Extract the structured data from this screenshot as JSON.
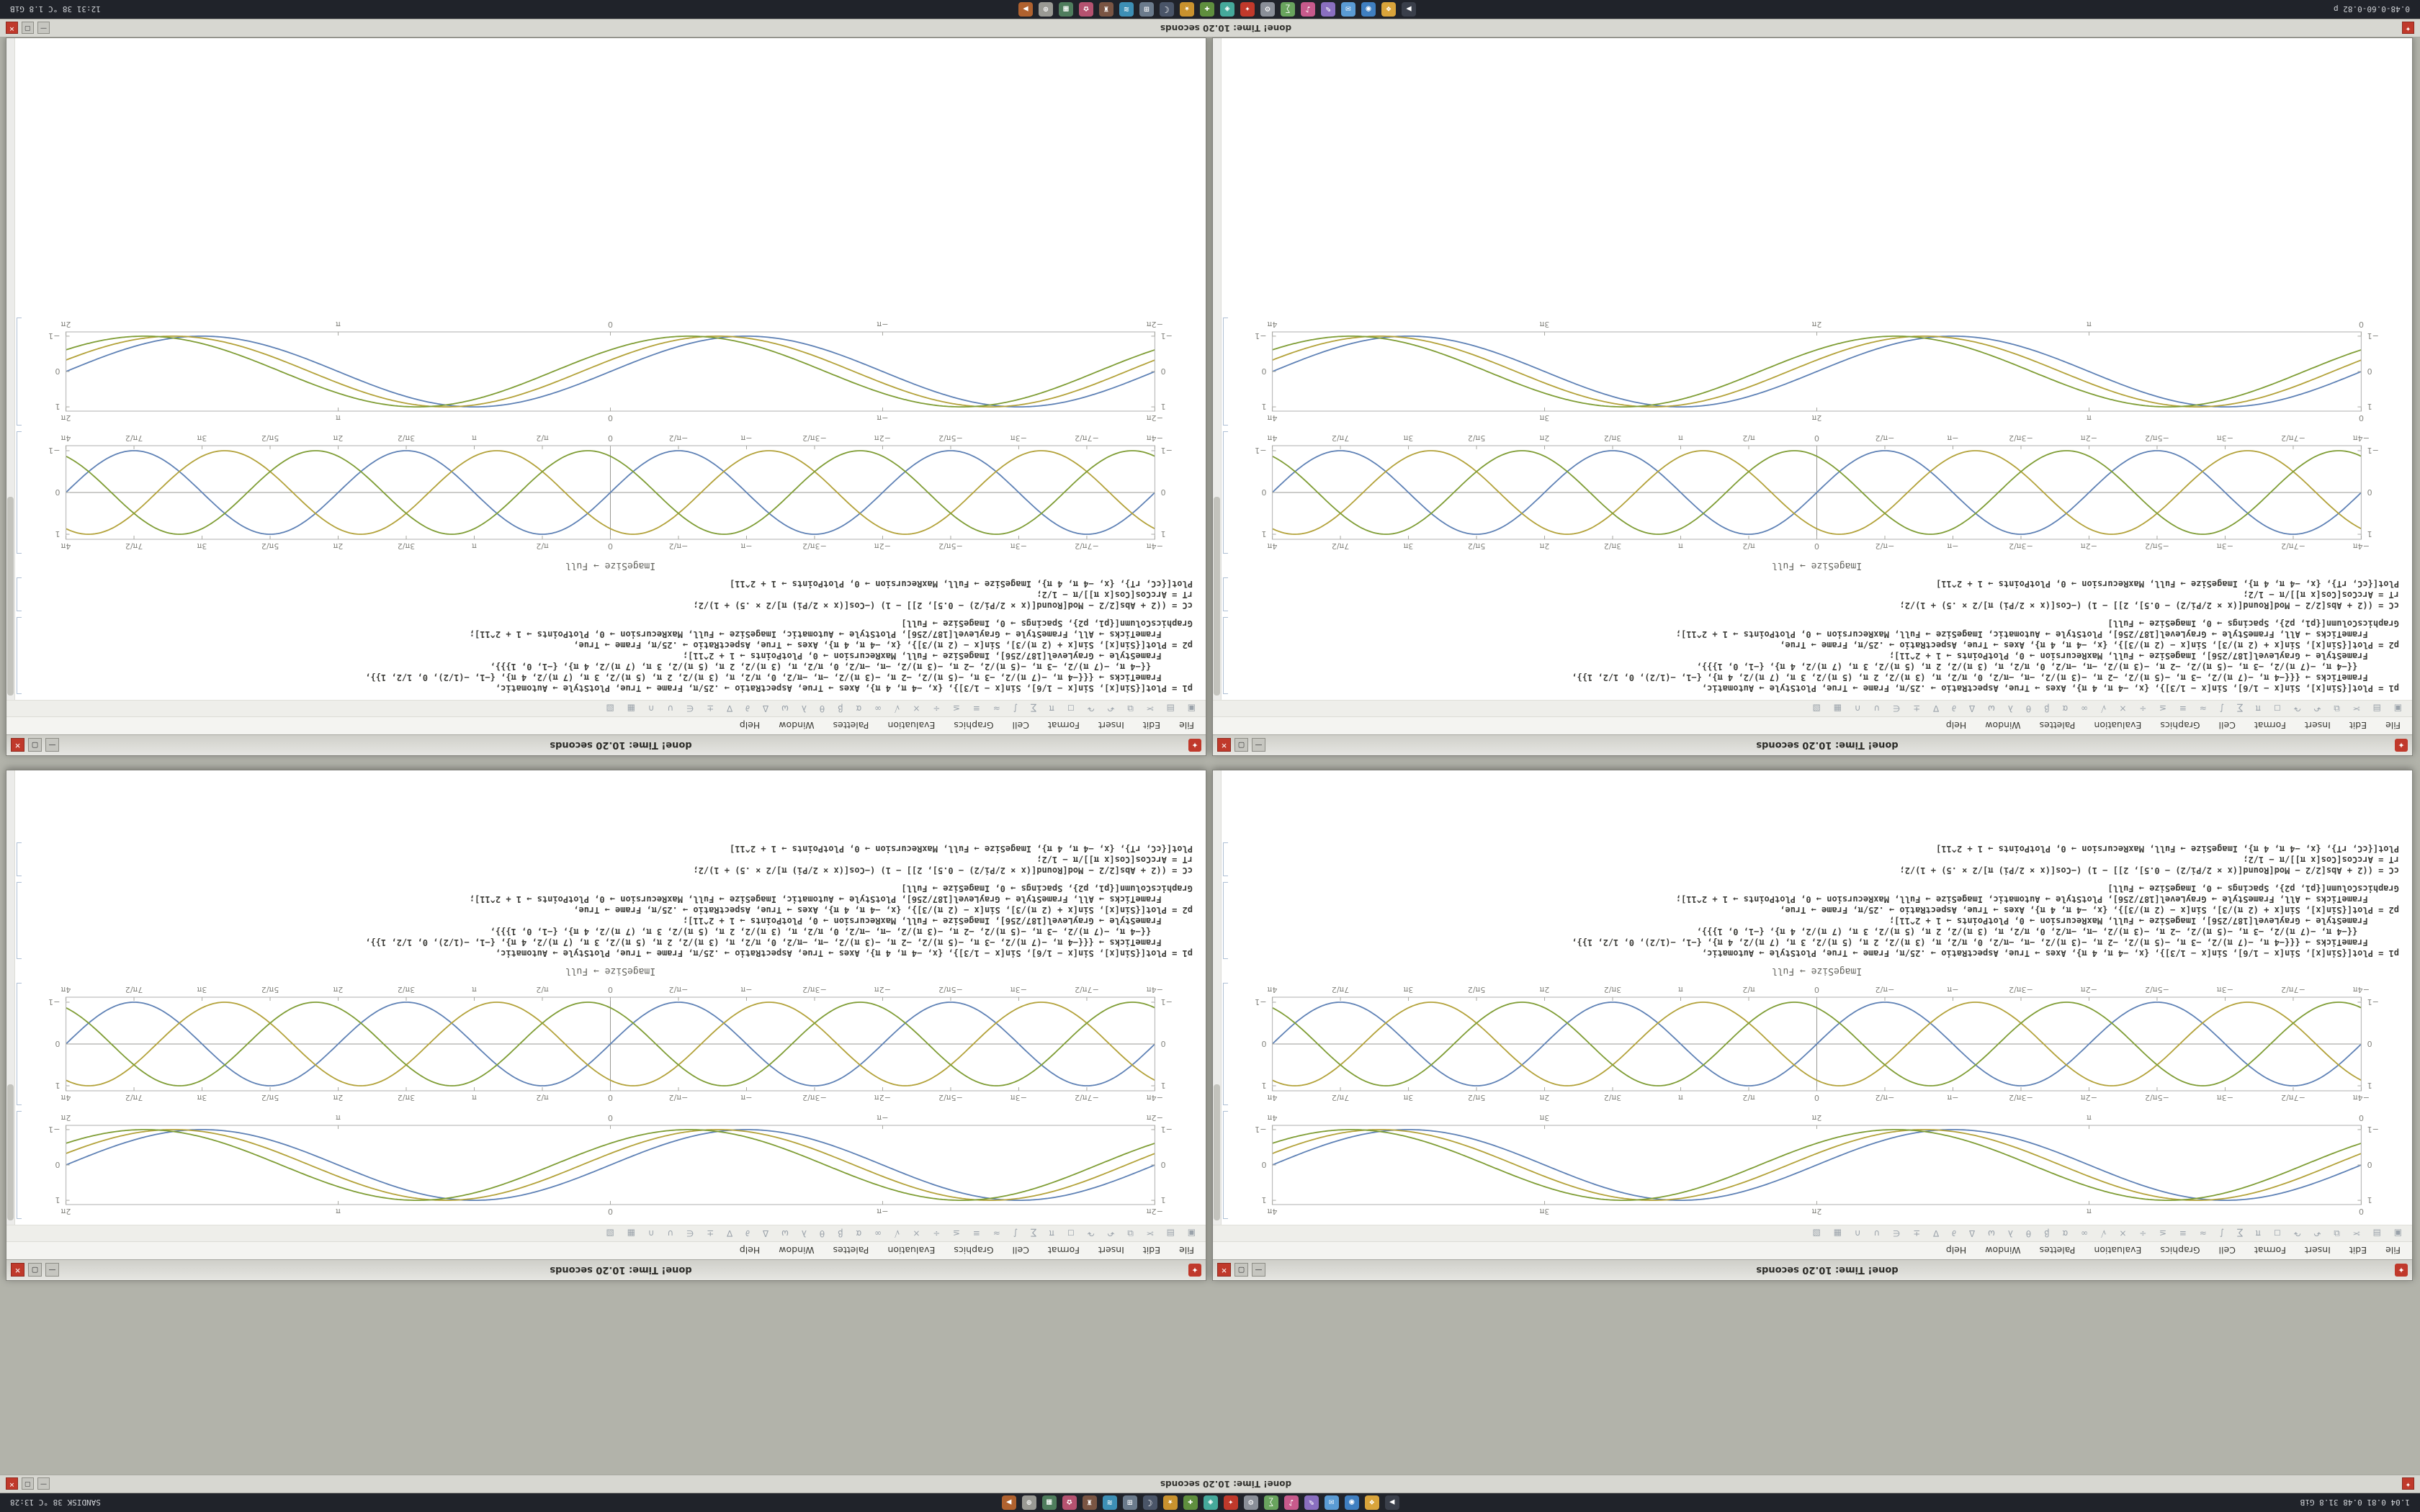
{
  "desktop": {
    "bg": "#b2b3aa"
  },
  "panel": {
    "top": {
      "left_status": "1.04 0.81 0.48   31.8 GiB",
      "right_status": "SANDISK   38 °C   13:28"
    },
    "bottom": {
      "left_status": "0.48-0.60-0.82 p",
      "right_status": "12:31   38 °C   1.8 GiB"
    },
    "icons": [
      {
        "name": "terminal-icon",
        "glyph": "▶",
        "color": "#3a3f4a"
      },
      {
        "name": "files-icon",
        "glyph": "❖",
        "color": "#d9a43b"
      },
      {
        "name": "browser-icon",
        "glyph": "◉",
        "color": "#3f7fc1"
      },
      {
        "name": "mail-icon",
        "glyph": "✉",
        "color": "#5a9bd4"
      },
      {
        "name": "editor-icon",
        "glyph": "✎",
        "color": "#8a6fc0"
      },
      {
        "name": "music-icon",
        "glyph": "♪",
        "color": "#c75a8c"
      },
      {
        "name": "calc-icon",
        "glyph": "∑",
        "color": "#69a45e"
      },
      {
        "name": "settings-icon",
        "glyph": "⚙",
        "color": "#8a8f98"
      },
      {
        "name": "mathematica-icon",
        "glyph": "✦",
        "color": "#c0392b"
      },
      {
        "name": "chat-icon",
        "glyph": "◈",
        "color": "#45a99b"
      },
      {
        "name": "add-icon",
        "glyph": "✚",
        "color": "#5f8f3e"
      },
      {
        "name": "star-icon",
        "glyph": "★",
        "color": "#c9922e"
      },
      {
        "name": "night-icon",
        "glyph": "☾",
        "color": "#4a5568"
      },
      {
        "name": "grid-icon",
        "glyph": "⊞",
        "color": "#6b7b8c"
      },
      {
        "name": "waves-icon",
        "glyph": "≋",
        "color": "#3d8fb5"
      },
      {
        "name": "games-icon",
        "glyph": "♜",
        "color": "#7a5543"
      },
      {
        "name": "photos-icon",
        "glyph": "✿",
        "color": "#b55270"
      },
      {
        "name": "table-icon",
        "glyph": "▦",
        "color": "#4f7d5d"
      },
      {
        "name": "system-icon",
        "glyph": "⊕",
        "color": "#9a9a94"
      },
      {
        "name": "media-icon",
        "glyph": "▶",
        "color": "#b0622f"
      }
    ]
  },
  "strip": {
    "title": "done! Time: 10.20 seconds"
  },
  "window": {
    "title": "done! Time: 10.20 seconds",
    "icon_glyph": "✦",
    "menu": [
      "File",
      "Edit",
      "Insert",
      "Format",
      "Cell",
      "Graphics",
      "Evaluation",
      "Palettes",
      "Window",
      "Help"
    ],
    "toolbar_glyphs": "▣ ▤ ✂ ⧉ ↶ ↷ ◻ π ∑ ∫ ≈ ≡ ≤ ÷ × √ ∞ α β θ λ ω Δ ∂ ∇ ± ∈ ∪ ∩ ▦ ▧",
    "buttons": {
      "minimize": "—",
      "maximize": "▢",
      "close": "✕"
    },
    "cells": {
      "label_imagesize": "ImageSize → Full",
      "code_main": [
        "p1 = Plot[{Sin[x], Sin[x − 1/6], Sin[x − 1/3]}, {x, −4 π, 4 π}, Axes → True, AspectRatio → .25/π, Frame → True, PlotStyle → Automatic,",
        "      FrameTicks → {{{−4 π, −(7 π)/2, −3 π, −(5 π)/2, −2 π, −(3 π)/2, −π, −π/2, 0, π/2, π, (3 π)/2, 2 π, (5 π)/2, 3 π, (7 π)/2, 4 π}, {−1, −(1/2), 0, 1/2, 1}},",
        "        {{−4 π, −(7 π)/2, −3 π, −(5 π)/2, −2 π, −(3 π)/2, −π, −π/2, 0, π/2, π, (3 π)/2, 2 π, (5 π)/2, 3 π, (7 π)/2, 4 π}, {−1, 0, 1}}},",
        "      FrameStyle → GrayLevel[187/256], ImageSize → Full, MaxRecursion → 0, PlotPoints → 1 + 2^11];",
        "p2 = Plot[{Sin[x], Sin[x + (2 π)/3], Sin[x − (2 π)/3]}, {x, −4 π, 4 π}, Axes → True, AspectRatio → .25/π, Frame → True,",
        "      FrameTicks → All, FrameStyle → GrayLevel[187/256], PlotStyle → Automatic, ImageSize → Full, MaxRecursion → 0, PlotPoints → 1 + 2^11];",
        "GraphicsColumn[{p1, p2}, Spacings → 0, ImageSize → Full]"
      ],
      "code_small": [
        "cC = ((2 + Abs[2/2 − Mod[Round[(x × 2/Pi/2) − 0.5], 2]] − 1) (−Cos[(x × 2/Pi) π]/2 × .5) + 1)/2;",
        "rT = ArcCos[Cos[x π]]/π − 1/2;",
        "Plot[{cC, rT}, {x, −4 π, 4 π}, ImageSize → Full, MaxRecursion → 0, PlotPoints → 1 + 2^11]"
      ]
    }
  },
  "chart_data": [
    {
      "id": "braid",
      "type": "line",
      "title": "",
      "xlabel": "",
      "ylabel": "",
      "vb_h": 170,
      "x_range": [
        -12.5664,
        12.5664
      ],
      "y_range": [
        -1.12,
        1.12
      ],
      "axes": true,
      "frame": true,
      "x_tick_values": [
        -12.5664,
        -10.9956,
        -9.4248,
        -7.854,
        -6.2832,
        -4.7124,
        -3.1416,
        -1.5708,
        0,
        1.5708,
        3.1416,
        4.7124,
        6.2832,
        7.854,
        9.4248,
        10.9956,
        12.5664
      ],
      "x_tick_labels": [
        "−4π",
        "−7π/2",
        "−3π",
        "−5π/2",
        "−2π",
        "−3π/2",
        "−π",
        "−π/2",
        "0",
        "π/2",
        "π",
        "3π/2",
        "2π",
        "5π/2",
        "3π",
        "7π/2",
        "4π"
      ],
      "y_tick_values": [
        -1,
        0,
        1
      ],
      "y_tick_labels": [
        "−1",
        "0",
        "1"
      ],
      "series": [
        {
          "name": "sin(x)",
          "freq": 1,
          "phase": 0,
          "color": "#5e81b5"
        },
        {
          "name": "sin(x+2π/3)",
          "freq": 1,
          "phase": 2.0944,
          "color": "#b3a23a"
        },
        {
          "name": "sin(x−2π/3)",
          "freq": 1,
          "phase": -2.0944,
          "color": "#7f9d35"
        }
      ]
    },
    {
      "id": "smooth_left",
      "type": "line",
      "title": "",
      "xlabel": "",
      "ylabel": "",
      "vb_h": 150,
      "x_range": [
        0,
        12.5664
      ],
      "y_range": [
        -1.12,
        1.12
      ],
      "axes": false,
      "frame": true,
      "x_tick_values": [
        0,
        3.1416,
        6.2832,
        9.4248,
        12.5664
      ],
      "x_tick_labels": [
        "0",
        "π",
        "2π",
        "3π",
        "4π"
      ],
      "y_tick_values": [
        -1,
        0,
        1
      ],
      "y_tick_labels": [
        "−1",
        "0",
        "1"
      ],
      "series": [
        {
          "name": "sin(x)",
          "freq": 1,
          "phase": 0,
          "color": "#5e81b5"
        },
        {
          "name": "sin(x−1/3)",
          "freq": 1,
          "phase": -0.33,
          "color": "#b3a23a"
        },
        {
          "name": "sin(x−2/3)",
          "freq": 1,
          "phase": -0.66,
          "color": "#7f9d35"
        }
      ]
    },
    {
      "id": "smooth_right",
      "type": "line",
      "title": "",
      "xlabel": "",
      "ylabel": "",
      "vb_h": 150,
      "x_range": [
        -6.2832,
        6.2832
      ],
      "y_range": [
        -1.12,
        1.12
      ],
      "axes": false,
      "frame": true,
      "x_tick_values": [
        -6.2832,
        -3.1416,
        0,
        3.1416,
        6.2832
      ],
      "x_tick_labels": [
        "−2π",
        "−π",
        "0",
        "π",
        "2π"
      ],
      "y_tick_values": [
        -1,
        0,
        1
      ],
      "y_tick_labels": [
        "−1",
        "0",
        "1"
      ],
      "series": [
        {
          "name": "sin(x)",
          "freq": 1,
          "phase": 0,
          "color": "#5e81b5"
        },
        {
          "name": "sin(x−1/3)",
          "freq": 1,
          "phase": -0.33,
          "color": "#b3a23a"
        },
        {
          "name": "sin(x−2/3)",
          "freq": 1,
          "phase": -0.66,
          "color": "#7f9d35"
        }
      ]
    }
  ]
}
